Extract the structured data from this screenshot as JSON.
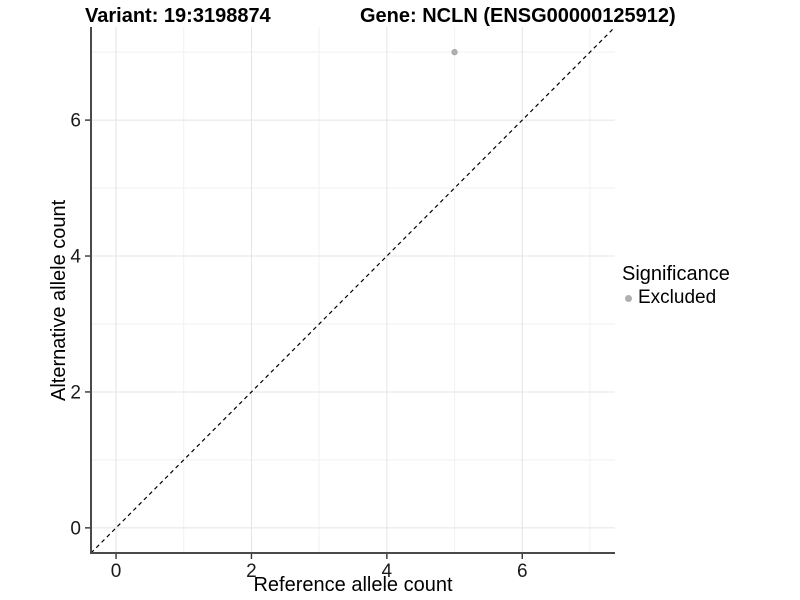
{
  "titles": {
    "variant": "Variant: 19:3198874",
    "gene": "Gene: NCLN (ENSG00000125912)"
  },
  "chart_data": {
    "type": "scatter",
    "xlabel": "Reference allele count",
    "ylabel": "Alternative allele count",
    "xlim": [
      -0.37,
      7.37
    ],
    "ylim": [
      -0.37,
      7.37
    ],
    "xticks": [
      0,
      2,
      4,
      6
    ],
    "yticks": [
      0,
      2,
      4,
      6
    ],
    "minor_gridlines": [
      1,
      3,
      5,
      7
    ],
    "grid": "on",
    "points": [
      {
        "x": 5,
        "y": 7,
        "series": "Excluded"
      }
    ],
    "reference_line": {
      "type": "identity y=x",
      "style": "dashed",
      "color": "#000000"
    },
    "legend": {
      "title": "Significance",
      "position": "right",
      "items": [
        {
          "label": "Excluded",
          "color": "#b0b0b0"
        }
      ]
    }
  },
  "colors": {
    "point": "#b0b0b0",
    "major_grid": "#e4e4e4",
    "minor_grid": "#f1f1f1",
    "axis_line": "#4a4a4a",
    "tick": "#333333",
    "tick_label": "#1a1a1a",
    "background": "#ffffff"
  }
}
